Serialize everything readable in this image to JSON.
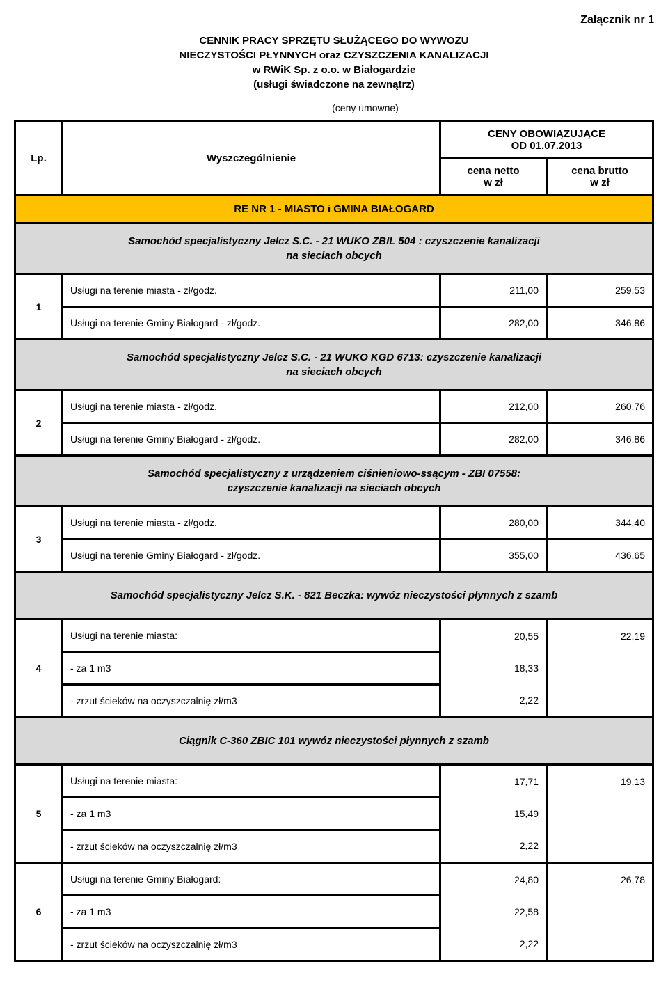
{
  "attachment_label": "Załącznik nr 1",
  "title_lines": [
    "CENNIK PRACY SPRZĘTU SŁUŻĄCEGO DO WYWOZU",
    "NIECZYSTOŚCI PŁYNNYCH oraz CZYSZCZENIA KANALIZACJI",
    "w RWiK Sp. z o.o. w Białogardzie",
    "(usługi świadczone na zewnątrz)"
  ],
  "subtitle": "(ceny umowne)",
  "table_header": {
    "lp": "Lp.",
    "desc": "Wyszczególnienie",
    "prices_title": "CENY OBOWIĄZUJĄCE",
    "prices_date": "OD 01.07.2013",
    "net_label": "cena netto",
    "gross_label": "cena brutto",
    "unit": "w zł"
  },
  "region_label": "RE NR 1 - MIASTO i GMINA BIAŁOGARD",
  "vehicles": [
    {
      "title_l1": "Samochód specjalistyczny Jelcz S.C. - 21 WUKO ZBIL 504 : czyszczenie kanalizacji",
      "title_l2": "na sieciach obcych"
    },
    {
      "title_l1": "Samochód specjalistyczny Jelcz S.C. - 21 WUKO KGD 6713: czyszczenie kanalizacji",
      "title_l2": "na sieciach obcych"
    },
    {
      "title_l1": "Samochód specjalistyczny z urządzeniem ciśnieniowo-ssącym - ZBI 07558:",
      "title_l2": "czyszczenie kanalizacji na sieciach obcych"
    },
    {
      "title_l1": "Samochód specjalistyczny Jelcz S.K. - 821 Beczka: wywóz nieczystości płynnych z szamb",
      "title_l2": ""
    },
    {
      "title_l1": "Ciągnik C-360 ZBIC 101 wywóz nieczystości płynnych z szamb",
      "title_l2": ""
    }
  ],
  "rows": {
    "r1a_label": "Usługi na terenie miasta - zł/godz.",
    "r1a_net": "211,00",
    "r1a_gross": "259,53",
    "r1b_label": "Usługi na terenie Gminy Białogard - zł/godz.",
    "r1b_net": "282,00",
    "r1b_gross": "346,86",
    "r2a_label": "Usługi na terenie miasta - zł/godz.",
    "r2a_net": "212,00",
    "r2a_gross": "260,76",
    "r2b_label": "Usługi na terenie Gminy Białogard - zł/godz.",
    "r2b_net": "282,00",
    "r2b_gross": "346,86",
    "r3a_label": "Usługi na terenie miasta - zł/godz.",
    "r3a_net": "280,00",
    "r3a_gross": "344,40",
    "r3b_label": "Usługi na terenie Gminy Białogard - zł/godz.",
    "r3b_net": "355,00",
    "r3b_gross": "436,65",
    "r4a_label": "Usługi na terenie miasta:",
    "r4a_net": "20,55",
    "r4a_gross": "22,19",
    "r4b_label": "- za 1 m3",
    "r4b_net": "18,33",
    "r4c_label": "- zrzut ścieków na oczyszczalnię zł/m3",
    "r4c_net": "2,22",
    "r5a_label": "Usługi na terenie miasta:",
    "r5a_net": "17,71",
    "r5a_gross": "19,13",
    "r5b_label": "- za 1 m3",
    "r5b_net": "15,49",
    "r5c_label": "- zrzut ścieków na oczyszczalnię zł/m3",
    "r5c_net": "2,22",
    "r6a_label": "Usługi na terenie Gminy Białogard:",
    "r6a_net": "24,80",
    "r6a_gross": "26,78",
    "r6b_label": "- za 1 m3",
    "r6b_net": "22,58",
    "r6c_label": "- zrzut ścieków na oczyszczalnię zł/m3",
    "r6c_net": "2,22"
  },
  "lp": {
    "n1": "1",
    "n2": "2",
    "n3": "3",
    "n4": "4",
    "n5": "5",
    "n6": "6"
  },
  "colors": {
    "region_bg": "#ffc000",
    "vehicle_bg": "#d9d9d9"
  }
}
